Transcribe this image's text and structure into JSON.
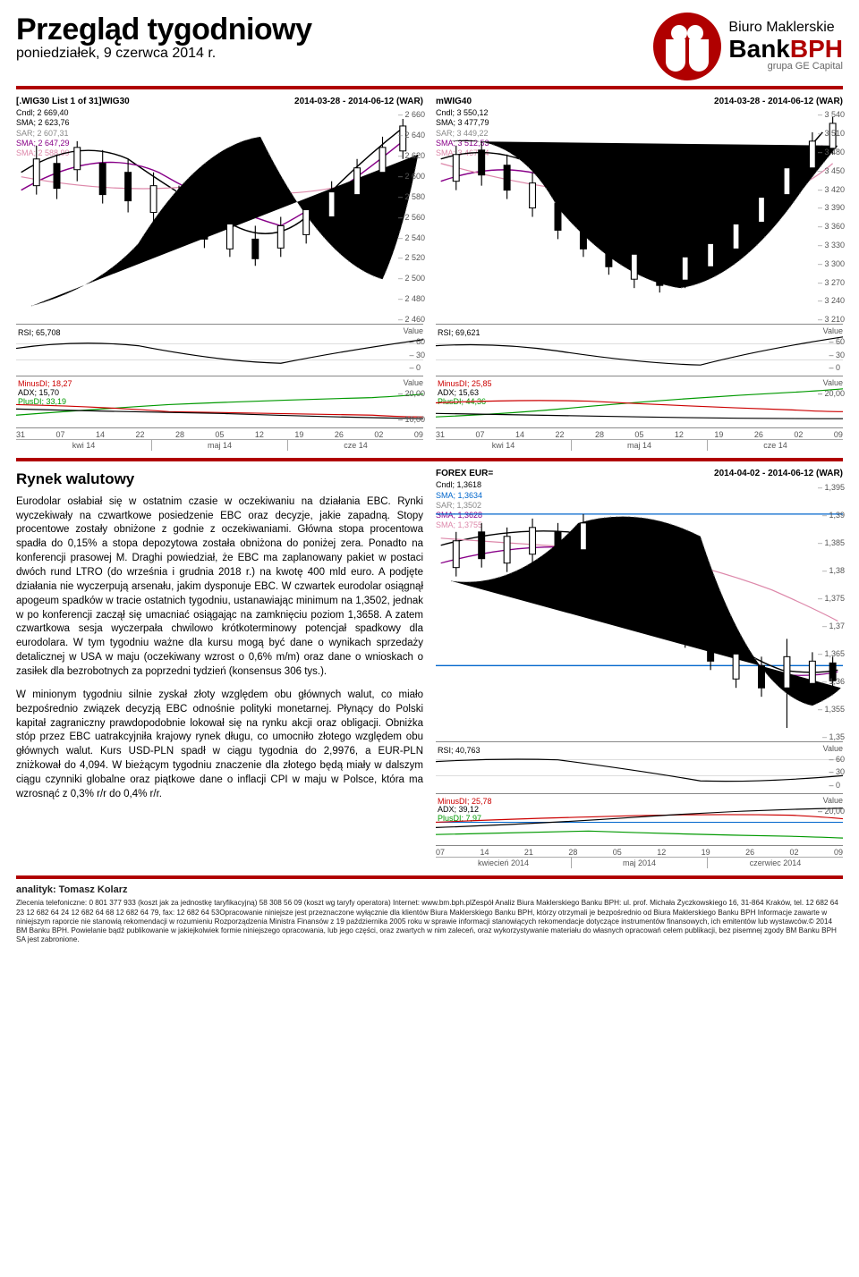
{
  "header": {
    "title": "Przegląd tygodniowy",
    "date": "poniedziałek, 9 czerwca 2014 r.",
    "logo": {
      "l1": "Biuro Maklerskie",
      "l2a": "Bank",
      "l2b": "BPH",
      "l3": "grupa GE Capital"
    }
  },
  "chart1": {
    "title": "[.WIG30 List 1 of 31]WIG30",
    "range": "2014-03-28 - 2014-06-12 (WAR)",
    "legend": [
      {
        "t": "Cndl; 2 669,40",
        "c": "c-black"
      },
      {
        "t": "SMA; 2 623,76",
        "c": "c-black"
      },
      {
        "t": "SAR; 2 607,31",
        "c": "c-gray"
      },
      {
        "t": "SMA; 2 647,29",
        "c": "c-purple"
      },
      {
        "t": "SMA; 2 588,99",
        "c": "c-pink"
      }
    ],
    "yticks": [
      "2 660",
      "2 640",
      "2 620",
      "2 600",
      "2 580",
      "2 560",
      "2 540",
      "2 520",
      "2 500",
      "2 480",
      "2 460"
    ],
    "rsi": {
      "label": "RSI; 65,708",
      "vlabel": "Value",
      "ticks": [
        "60",
        "30",
        "0"
      ]
    },
    "adx": {
      "lines": [
        {
          "t": "MinusDI; 18,27",
          "c": "c-red"
        },
        {
          "t": "ADX; 15,70",
          "c": "c-black"
        },
        {
          "t": "PlusDI; 33,19",
          "c": "c-green"
        }
      ],
      "vlabel": "Value",
      "ticks": [
        "20,00",
        "10,00"
      ]
    },
    "xticks": [
      "31",
      "07",
      "14",
      "22",
      "28",
      "05",
      "12",
      "19",
      "26",
      "02",
      "09"
    ],
    "xmonths": [
      "kwi 14",
      "maj 14",
      "cze 14"
    ]
  },
  "chart2": {
    "title": "mWIG40",
    "range": "2014-03-28 - 2014-06-12 (WAR)",
    "legend": [
      {
        "t": "Cndl; 3 550,12",
        "c": "c-black"
      },
      {
        "t": "SMA; 3 477,79",
        "c": "c-black"
      },
      {
        "t": "SAR; 3 449,22",
        "c": "c-gray"
      },
      {
        "t": "SMA; 3 512,53",
        "c": "c-purple"
      },
      {
        "t": "SMA; 3 467,44",
        "c": "c-pink"
      }
    ],
    "yticks": [
      "3 540",
      "3 510",
      "3 480",
      "3 450",
      "3 420",
      "3 390",
      "3 360",
      "3 330",
      "3 300",
      "3 270",
      "3 240",
      "3 210"
    ],
    "rsi": {
      "label": "RSI; 69,621",
      "vlabel": "Value",
      "ticks": [
        "60",
        "30",
        "0"
      ]
    },
    "adx": {
      "lines": [
        {
          "t": "MinusDI; 25,85",
          "c": "c-red"
        },
        {
          "t": "ADX; 15,63",
          "c": "c-black"
        },
        {
          "t": "PlusDI; 44,36",
          "c": "c-green"
        }
      ],
      "vlabel": "Value",
      "ticks": [
        "20,00"
      ]
    },
    "xticks": [
      "31",
      "07",
      "14",
      "22",
      "28",
      "05",
      "12",
      "19",
      "26",
      "02",
      "09"
    ],
    "xmonths": [
      "kwi 14",
      "maj 14",
      "cze 14"
    ]
  },
  "market": {
    "heading": "Rynek walutowy",
    "p1": "Eurodolar osłabiał się w ostatnim czasie w oczekiwaniu na działania EBC. Rynki wyczekiwały na czwartkowe posiedzenie EBC oraz decyzje, jakie zapadną. Stopy procentowe zostały obniżone z godnie z oczekiwaniami. Główna stopa procentowa spadła do 0,15% a stopa depozytowa została obniżona do poniżej zera. Ponadto na konferencji prasowej M. Draghi powiedział, że EBC ma zaplanowany pakiet w postaci dwóch rund LTRO (do września i grudnia 2018 r.) na kwotę 400 mld euro. A podjęte działania nie wyczerpują arsenału, jakim dysponuje EBC. W czwartek eurodolar osiągnął apogeum spadków w tracie ostatnich tygodniu, ustanawiając minimum na 1,3502, jednak w po konferencji zaczął się umacniać osiągając na zamknięciu poziom 1,3658. A zatem czwartkowa sesja wyczerpała chwilowo krótkoterminowy potencjał spadkowy dla eurodolara. W tym tygodniu ważne dla kursu mogą być dane o wynikach sprzedaży detalicznej w USA w maju (oczekiwany wzrost o 0,6% m/m) oraz dane o wnioskach o zasiłek dla bezrobotnych za poprzedni tydzień (konsensus 306 tys.).",
    "p2": "W minionym tygodniu silnie zyskał złoty względem obu głównych walut, co miało bezpośrednio związek decyzją EBC odnośnie polityki monetarnej. Płynący do Polski kapitał zagraniczny prawdopodobnie lokował się na rynku akcji oraz obligacji. Obniżka stóp przez EBC uatrakcyjniła krajowy rynek długu, co umocniło złotego względem obu głównych walut. Kurs USD-PLN spadł w ciągu tygodnia do 2,9976, a EUR-PLN zniżkował do 4,094. W bieżącym tygodniu znaczenie dla złotego będą miały w dalszym ciągu czynniki globalne oraz piątkowe dane o inflacji CPI w maju w Polsce, która ma wzrosnąć z 0,3% r/r do 0,4% r/r."
  },
  "chart3": {
    "title": "FOREX EUR=",
    "range": "2014-04-02 - 2014-06-12 (WAR)",
    "legend": [
      {
        "t": "Cndl; 1,3618",
        "c": "c-black"
      },
      {
        "t": "SMA; 1,3634",
        "c": "c-blue"
      },
      {
        "t": "SAR; 1,3502",
        "c": "c-gray"
      },
      {
        "t": "SMA; 1,3628",
        "c": "c-purple"
      },
      {
        "t": "SMA; 1,3755",
        "c": "c-pink"
      }
    ],
    "yticks": [
      "1,395",
      "1,39",
      "1,385",
      "1,38",
      "1,375",
      "1,37",
      "1,365",
      "1,36",
      "1,355",
      "1,35"
    ],
    "rsi": {
      "label": "RSI; 40,763",
      "vlabel": "Value",
      "ticks": [
        "60",
        "30",
        "0"
      ]
    },
    "adx": {
      "lines": [
        {
          "t": "MinusDI; 25,78",
          "c": "c-red"
        },
        {
          "t": "ADX; 39,12",
          "c": "c-black"
        },
        {
          "t": "PlusDI; 7,97",
          "c": "c-green"
        }
      ],
      "vlabel": "Value",
      "ticks": [
        "20,00"
      ]
    },
    "xticks": [
      "07",
      "14",
      "21",
      "28",
      "05",
      "12",
      "19",
      "26",
      "02",
      "09"
    ],
    "xmonths": [
      "kwiecień 2014",
      "maj 2014",
      "czerwiec 2014"
    ]
  },
  "footer": {
    "analyst": "analityk: Tomasz Kolarz",
    "lines": [
      "Zlecenia telefoniczne: 0 801 377 933 (koszt jak za jednostkę taryfikacyjną)  58 308 56 09 (koszt wg taryfy operatora)  Internet: www.bm.bph.pl",
      "Zespół Analiz Biura Maklerskiego Banku BPH: ul. prof. Michała Życzkowskiego 16, 31-864 Kraków,  tel. 12 682 64 23  12 682 64 24  12 682 64 68  12 682 64 79,  fax: 12 682 64 53",
      "Opracowanie niniejsze jest przeznaczone wyłącznie dla klientów Biura Maklerskiego Banku BPH, którzy otrzymali je bezpośrednio od Biura Maklerskiego Banku BPH Informacje zawarte w niniejszym raporcie nie stanowią rekomendacji w rozumieniu Rozporządzenia Ministra Finansów z 19 października 2005 roku w sprawie informacji stanowiących rekomendacje dotyczące instrumentów finansowych, ich emitentów lub wystawców.",
      "© 2014 BM Banku BPH. Powielanie bądź publikowanie w jakiejkolwiek formie niniejszego opracowania, lub jego części, oraz zwartych w nim zaleceń, oraz wykorzystywanie materiału do własnych opracowań celem publikacji, bez pisemnej zgody BM Banku BPH SA jest zabronione."
    ]
  }
}
